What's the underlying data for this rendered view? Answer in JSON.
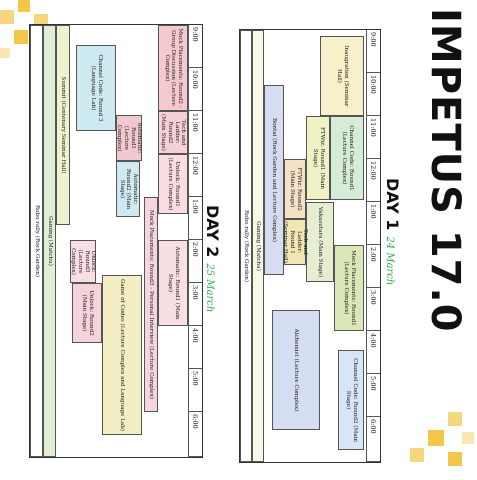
{
  "title": "IMPETUS 17.0",
  "day1": {
    "label": "DAY 1",
    "date": "24 March",
    "times": [
      "9:00",
      "10:00",
      "11:00",
      "12:00",
      "1:00",
      "2:00",
      "3:00",
      "4:00",
      "5:00",
      "6:00"
    ],
    "events": [
      "Inaugration (Seminar Hall)",
      "Channel Code: Round1 (Lecture Complex)",
      "FTWiz: Round1 (Main Stage)",
      "Mock Placements: Round1 (Lecture Complex)",
      "FTWiz: Round2 (Main Stage)",
      "Tech and Ladder: Round 1 (Seminar Hall)",
      "Vakasutara (Main Stage)",
      "Channel Code: Round2 (Main Stage)",
      "Alchemist (Lecture Complex)",
      "Bontai (Rock Garden and Lecture Complex)",
      "Gaming (Matchu)",
      "Robo rally (Rock Garden)"
    ]
  },
  "day2": {
    "label": "DAY 2",
    "date": "25 March",
    "times": [
      "9:00",
      "10:00",
      "11:00",
      "12:00",
      "1:00",
      "2:00",
      "3:00",
      "4:00",
      "5:00",
      "6:00"
    ],
    "events": [
      "Mock Placements: Round2 - Group Discussion (Lecture Complex)",
      "Tech and Ladder: Round2 (Main Stage)",
      "Unlock: Round1 (Lecture Complex)",
      "Automatic: Round1 (Main Stage)",
      "Mock Placements: Round3 - Personal Interview (Lecture Complex)",
      "Automatic: Round1 (Lecture Complex)",
      "Automatic: Round2 (Main Stage)",
      "Game of Codes (Lecture Complex and Language Lab)",
      "Channel Code: Round 3 (Language Lab)",
      "Unlock: Round2 (Main Stage)",
      "Unlock: Round3 (Lecture Complex)",
      "Summit (Centenary Seminar Hall)",
      "Gaming (Matchu)",
      "Robo rally (Rock Garden)"
    ]
  },
  "colors": {
    "accent": "#f0c94a",
    "green": "#2bb24c"
  }
}
